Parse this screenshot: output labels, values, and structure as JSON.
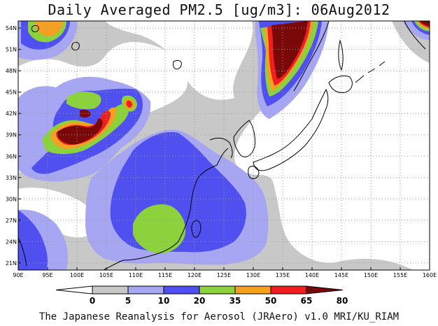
{
  "title": "Daily Averaged PM2.5 [ug/m3]: 06Aug2012",
  "credit": "The Japanese Reanalysis for Aerosol (JRAero) v1.0 MRI/KU_RIAM",
  "map": {
    "lon_range": [
      90,
      160
    ],
    "lat_range": [
      20,
      55
    ],
    "lon_ticks": [
      "90E",
      "95E",
      "100E",
      "105E",
      "110E",
      "115E",
      "120E",
      "125E",
      "130E",
      "135E",
      "140E",
      "145E",
      "150E",
      "155E",
      "160E"
    ],
    "lat_ticks": [
      "21N",
      "24N",
      "27N",
      "30N",
      "33N",
      "36N",
      "39N",
      "42N",
      "45N",
      "48N",
      "51N",
      "54N"
    ],
    "grid": "dotted",
    "colors": {
      "background": "#ffffff",
      "band_5_10": "#c8c8c8",
      "band_10_20": "#a6a6f2",
      "band_20_35": "#5050f0",
      "band_35_50": "#8cd23c",
      "band_50_65": "#f5a020",
      "band_65_80": "#f01e1e",
      "band_80_plus": "#7a0808",
      "coastline": "#000000"
    }
  },
  "colorbar": {
    "labels": [
      "0",
      "5",
      "10",
      "20",
      "35",
      "50",
      "65",
      "80"
    ],
    "colors": [
      "#ffffff",
      "#c8c8c8",
      "#a6a6f2",
      "#5050f0",
      "#8cd23c",
      "#f5a020",
      "#f01e1e",
      "#7a0808"
    ]
  }
}
